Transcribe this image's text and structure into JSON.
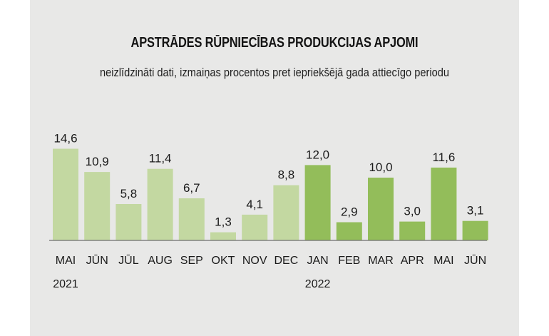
{
  "chart_data": {
    "type": "bar",
    "title": "APSTRĀDES RŪPNIECĪBAS PRODUKCIJAS APJOMI",
    "subtitle": "neizlīdzināti dati, izmaiņas procentos pret iepriekšējā gada attiecīgo periodu",
    "categories": [
      "MAI",
      "JŪN",
      "JŪL",
      "AUG",
      "SEP",
      "OKT",
      "NOV",
      "DEC",
      "JAN",
      "FEB",
      "MAR",
      "APR",
      "MAI",
      "JŪN"
    ],
    "values": [
      14.6,
      10.9,
      5.8,
      11.4,
      6.7,
      1.3,
      4.1,
      8.8,
      12.0,
      2.9,
      10.0,
      3.0,
      11.6,
      3.1
    ],
    "value_labels": [
      "14,6",
      "10,9",
      "5,8",
      "11,4",
      "6,7",
      "1,3",
      "4,1",
      "8,8",
      "12,0",
      "2,9",
      "10,0",
      "3,0",
      "11,6",
      "3,1"
    ],
    "year_labels": [
      {
        "index": 0,
        "text": "2021"
      },
      {
        "index": 8,
        "text": "2022"
      }
    ],
    "colors": {
      "year_2021": "#c3d8a1",
      "year_2022": "#93bd5a",
      "baseline": "#6f6f6f",
      "background": "#e8e8e7"
    },
    "year_of_bar": [
      2021,
      2021,
      2021,
      2021,
      2021,
      2021,
      2021,
      2021,
      2022,
      2022,
      2022,
      2022,
      2022,
      2022
    ],
    "ylim": [
      0,
      15
    ],
    "grid": false,
    "legend": "none"
  }
}
